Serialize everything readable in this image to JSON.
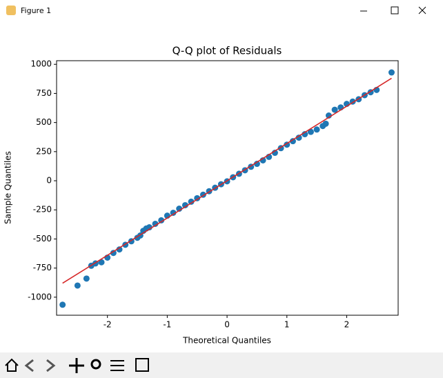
{
  "window": {
    "title": "Figure 1"
  },
  "chart_data": {
    "type": "scatter",
    "title": "Q-Q plot of Residuals",
    "x_label": "Theoretical Quantiles",
    "y_label": "Sample Quantiles",
    "x": [
      -2.75,
      -2.5,
      -2.35,
      -2.27,
      -2.2,
      -2.1,
      -2.0,
      -1.9,
      -1.8,
      -1.7,
      -1.6,
      -1.5,
      -1.45,
      -1.4,
      -1.35,
      -1.3,
      -1.2,
      -1.1,
      -1.0,
      -0.9,
      -0.8,
      -0.7,
      -0.6,
      -0.5,
      -0.4,
      -0.3,
      -0.2,
      -0.1,
      0,
      0.1,
      0.2,
      0.3,
      0.4,
      0.5,
      0.6,
      0.7,
      0.8,
      0.9,
      1.0,
      1.1,
      1.2,
      1.3,
      1.4,
      1.5,
      1.6,
      1.65,
      1.7,
      1.8,
      1.9,
      2.0,
      2.1,
      2.2,
      2.3,
      2.4,
      2.5,
      2.75
    ],
    "values": [
      -1065,
      -900,
      -840,
      -730,
      -710,
      -700,
      -660,
      -620,
      -590,
      -550,
      -520,
      -490,
      -470,
      -430,
      -410,
      -400,
      -370,
      -340,
      -300,
      -275,
      -240,
      -210,
      -180,
      -150,
      -120,
      -90,
      -60,
      -30,
      -5,
      30,
      60,
      90,
      120,
      145,
      175,
      205,
      240,
      280,
      310,
      340,
      370,
      400,
      420,
      440,
      470,
      490,
      560,
      610,
      630,
      660,
      680,
      700,
      735,
      760,
      780,
      930
    ],
    "color": "#1f77b4",
    "fit_line": {
      "x": [
        -2.75,
        2.75
      ],
      "values": [
        -880,
        880
      ],
      "color": "#d62728"
    },
    "xlim": [
      -2.85,
      2.86
    ],
    "ylim": [
      -1155,
      1031
    ],
    "xticks": [
      -2,
      -1,
      0,
      1,
      2
    ],
    "yticks": [
      -1000,
      -750,
      -500,
      -250,
      0,
      250,
      500,
      750,
      1000
    ]
  }
}
